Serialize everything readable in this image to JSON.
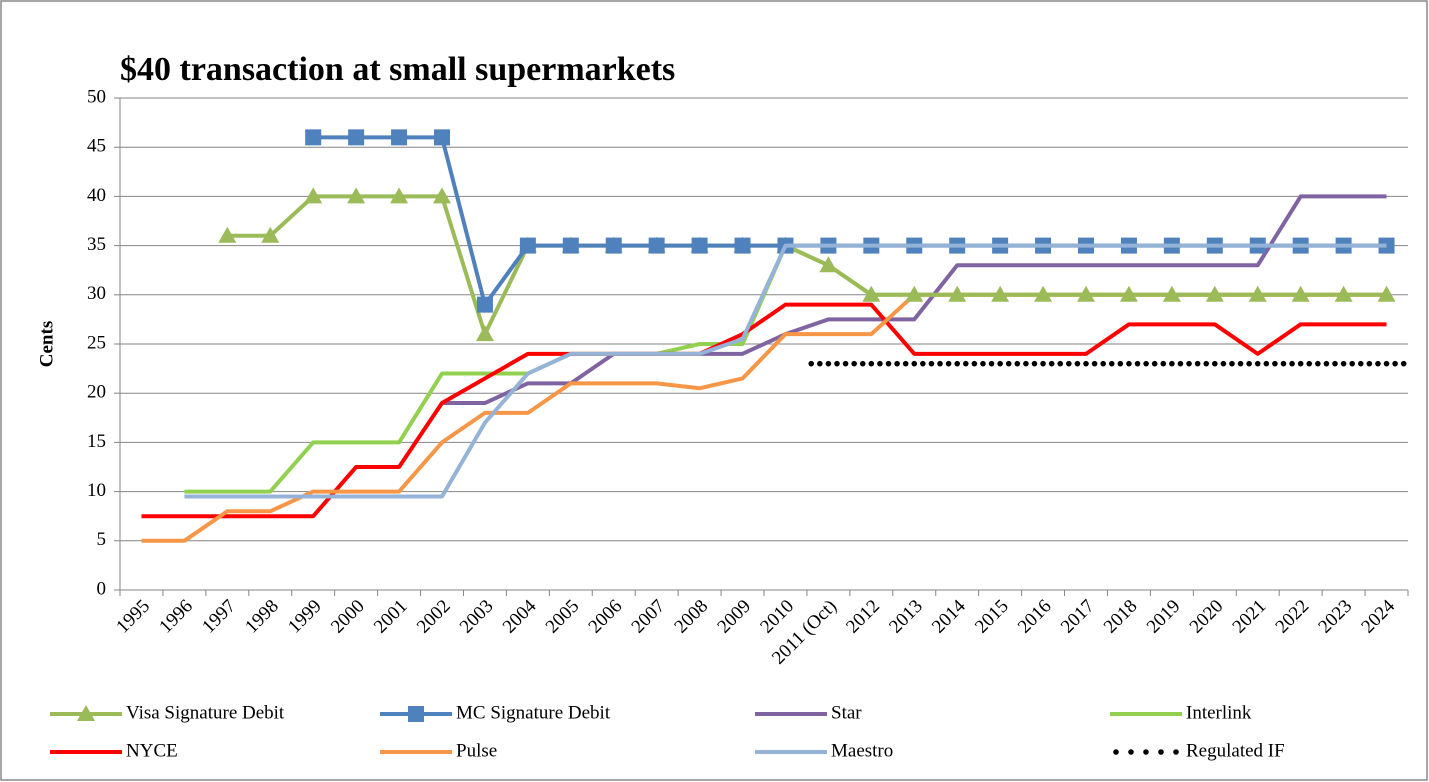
{
  "chart_data": {
    "type": "line",
    "title": "$40 transaction at small supermarkets",
    "y_label": "Cents",
    "categories": [
      "1995",
      "1996",
      "1997",
      "1998",
      "1999",
      "2000",
      "2001",
      "2002",
      "2003",
      "2004",
      "2005",
      "2006",
      "2007",
      "2008",
      "2009",
      "2010",
      "2011 (Oct)",
      "2012",
      "2013",
      "2014",
      "2015",
      "2016",
      "2017",
      "2018",
      "2019",
      "2020",
      "2021",
      "2022",
      "2023",
      "2024"
    ],
    "ylim": [
      0,
      50
    ],
    "yticks": [
      0,
      5,
      10,
      15,
      20,
      25,
      30,
      35,
      40,
      45,
      50
    ],
    "grid": true,
    "series": [
      {
        "name": "Visa Signature Debit",
        "color": "#9bbb59",
        "marker": "triangle",
        "values": [
          null,
          null,
          36,
          36,
          40,
          40,
          40,
          40,
          26,
          35,
          35,
          35,
          35,
          35,
          35,
          35,
          33,
          30,
          30,
          30,
          30,
          30,
          30,
          30,
          30,
          30,
          30,
          30,
          30,
          30
        ]
      },
      {
        "name": "MC Signature Debit",
        "color": "#4f81bd",
        "marker": "square",
        "values": [
          null,
          null,
          null,
          null,
          46,
          46,
          46,
          46,
          29,
          35,
          35,
          35,
          35,
          35,
          35,
          35,
          35,
          35,
          35,
          35,
          35,
          35,
          35,
          35,
          35,
          35,
          35,
          35,
          35,
          35
        ]
      },
      {
        "name": "Star",
        "color": "#8064a2",
        "values": [
          null,
          null,
          null,
          null,
          null,
          null,
          null,
          19,
          19,
          21,
          21,
          24,
          24,
          24,
          24,
          26,
          27.5,
          27.5,
          27.5,
          33,
          33,
          33,
          33,
          33,
          33,
          33,
          33,
          40,
          40,
          40
        ]
      },
      {
        "name": "Interlink",
        "color": "#92d050",
        "values": [
          null,
          10,
          10,
          10,
          15,
          15,
          15,
          22,
          22,
          22,
          24,
          24,
          24,
          25,
          25,
          35,
          33,
          30,
          30,
          30,
          30,
          30,
          30,
          30,
          30,
          30,
          30,
          30,
          30,
          30
        ]
      },
      {
        "name": "NYCE",
        "color": "#ff0000",
        "values": [
          7.5,
          7.5,
          7.5,
          7.5,
          7.5,
          12.5,
          12.5,
          19,
          21.5,
          24,
          24,
          24,
          24,
          24,
          26,
          29,
          29,
          29,
          24,
          24,
          24,
          24,
          24,
          27,
          27,
          27,
          24,
          27,
          27,
          27
        ]
      },
      {
        "name": "Pulse",
        "color": "#f79646",
        "values": [
          5,
          5,
          8,
          8,
          10,
          10,
          10,
          15,
          18,
          18,
          21,
          21,
          21,
          20.5,
          21.5,
          26,
          26,
          26,
          30,
          30,
          30,
          30,
          30,
          30,
          30,
          30,
          30,
          30,
          30,
          30
        ]
      },
      {
        "name": "Maestro",
        "color": "#95b3d7",
        "values": [
          null,
          9.5,
          9.5,
          9.5,
          9.5,
          9.5,
          9.5,
          9.5,
          17,
          22,
          24,
          24,
          24,
          24,
          25.5,
          35,
          35,
          35,
          35,
          35,
          35,
          35,
          35,
          35,
          35,
          35,
          35,
          35,
          35,
          35
        ]
      },
      {
        "name": "Regulated IF",
        "color": "#000000",
        "dash": "dotted",
        "values": [
          null,
          null,
          null,
          null,
          null,
          null,
          null,
          null,
          null,
          null,
          null,
          null,
          null,
          null,
          null,
          null,
          23,
          23,
          23,
          23,
          23,
          23,
          23,
          23,
          23,
          23,
          23,
          23,
          23,
          23
        ]
      }
    ]
  }
}
